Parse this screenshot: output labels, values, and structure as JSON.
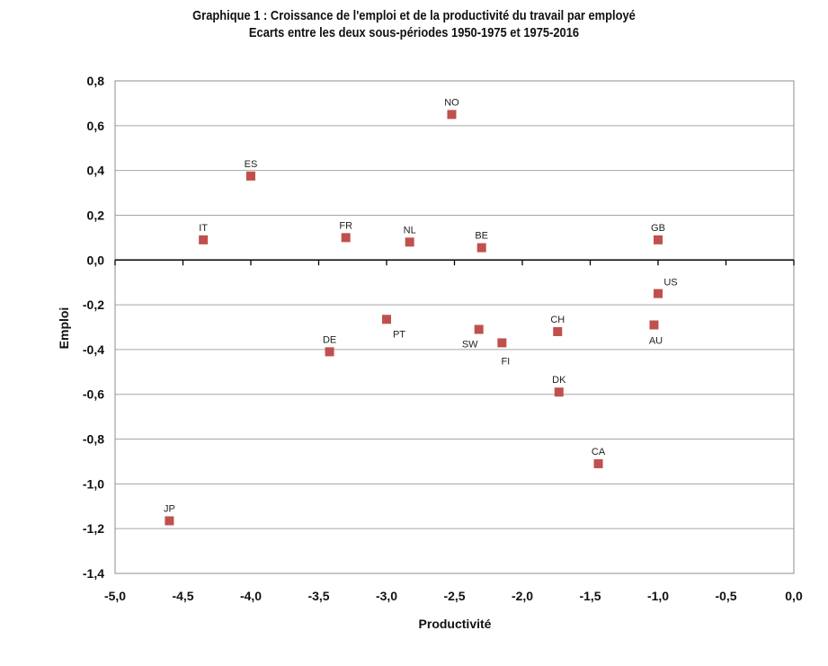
{
  "chart_data": {
    "type": "scatter",
    "title": "Graphique 1 : Croissance de l'emploi et  de la productivité du travail par employé",
    "subtitle": "Ecarts entre les deux sous-périodes 1950-1975 et 1975-2016",
    "xlabel": "Productivité",
    "ylabel": "Emploi",
    "xlim": [
      -5.0,
      0.0
    ],
    "ylim": [
      -1.4,
      0.8
    ],
    "x_ticks": [
      "-5,0",
      "-4,5",
      "-4,0",
      "-3,5",
      "-3,0",
      "-2,5",
      "-2,0",
      "-1,5",
      "-1,0",
      "-0,5",
      "0,0"
    ],
    "y_ticks": [
      "0,8",
      "0,6",
      "0,4",
      "0,2",
      "0,0",
      "-0,2",
      "-0,4",
      "-0,6",
      "-0,8",
      "-1,0",
      "-1,2",
      "-1,4"
    ],
    "grid": "horizontal",
    "marker_color": "#c0504d",
    "points": [
      {
        "label": "NO",
        "x": -2.52,
        "y": 0.65
      },
      {
        "label": "ES",
        "x": -4.0,
        "y": 0.375
      },
      {
        "label": "IT",
        "x": -4.35,
        "y": 0.09
      },
      {
        "label": "FR",
        "x": -3.3,
        "y": 0.1
      },
      {
        "label": "NL",
        "x": -2.83,
        "y": 0.08
      },
      {
        "label": "BE",
        "x": -2.3,
        "y": 0.055
      },
      {
        "label": "GB",
        "x": -1.0,
        "y": 0.09
      },
      {
        "label": "US",
        "x": -1.0,
        "y": -0.15
      },
      {
        "label": "AU",
        "x": -1.03,
        "y": -0.29
      },
      {
        "label": "PT",
        "x": -3.0,
        "y": -0.265
      },
      {
        "label": "SW",
        "x": -2.32,
        "y": -0.31
      },
      {
        "label": "FI",
        "x": -2.15,
        "y": -0.37
      },
      {
        "label": "CH",
        "x": -1.74,
        "y": -0.32
      },
      {
        "label": "DE",
        "x": -3.42,
        "y": -0.41
      },
      {
        "label": "DK",
        "x": -1.73,
        "y": -0.59
      },
      {
        "label": "CA",
        "x": -1.44,
        "y": -0.91
      },
      {
        "label": "JP",
        "x": -4.6,
        "y": -1.165
      }
    ]
  }
}
